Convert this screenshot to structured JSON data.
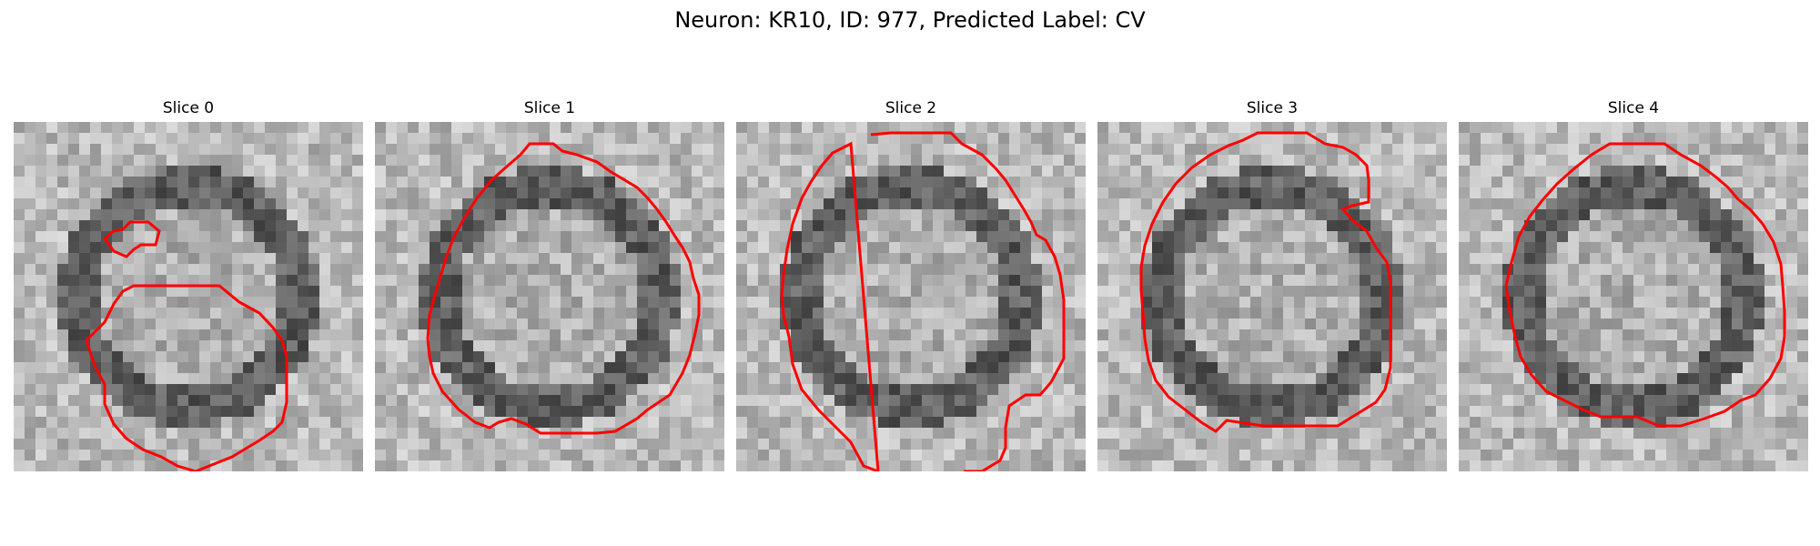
{
  "figure": {
    "title": "Neuron: KR10, ID: 977, Predicted Label: CV"
  },
  "panels": [
    {
      "title": "Slice 0",
      "image_description": "grayscale micrograph patch with a dark irregular blob; red contour around the lower right blob and a small contour at upper left",
      "contour_color": "#ff0000"
    },
    {
      "title": "Slice 1",
      "image_description": "grayscale micrograph patch with a round dark-ringed cell; red contour around it",
      "contour_color": "#ff0000"
    },
    {
      "title": "Slice 2",
      "image_description": "grayscale micrograph patch with a round cell; red contour extending to bottom edge",
      "contour_color": "#ff0000"
    },
    {
      "title": "Slice 3",
      "image_description": "grayscale micrograph patch with a bright round cell; red contour with a notch on the upper right",
      "contour_color": "#ff0000"
    },
    {
      "title": "Slice 4",
      "image_description": "grayscale micrograph patch with a round cell; red contour around it",
      "contour_color": "#ff0000"
    }
  ]
}
